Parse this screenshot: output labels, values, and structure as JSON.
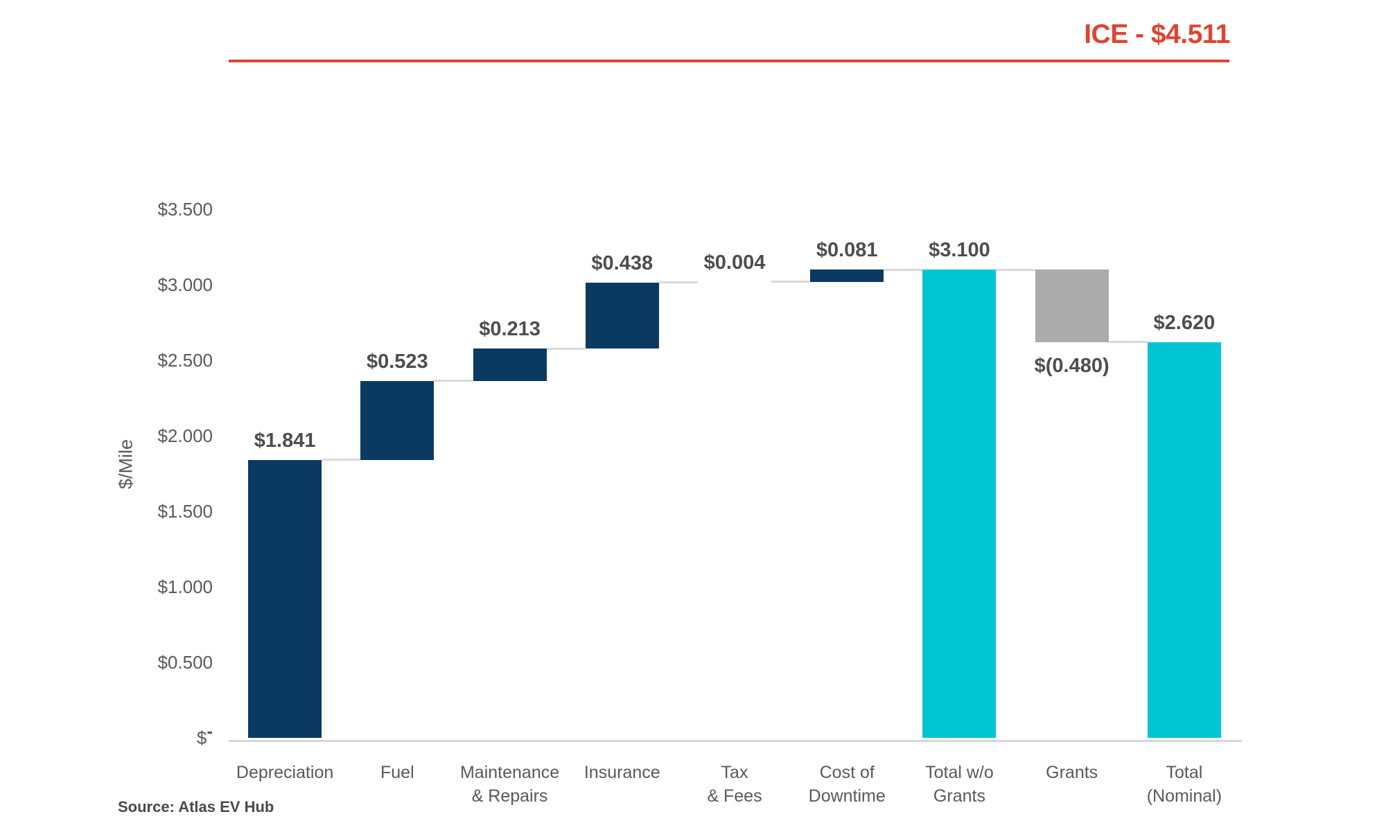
{
  "source_note": "Source: Atlas EV Hub",
  "colors": {
    "accent_red": "#de4430",
    "bar_navy": "#0a3a62",
    "bar_cyan": "#00c6d3",
    "bar_gray": "#ababab",
    "connector_gray": "#d9d9d9",
    "axis_line_gray": "#d6d6d6",
    "axis_text": "#595959",
    "data_label_text": "#4d4d4d"
  },
  "chart_data": {
    "type": "bar",
    "subtype": "waterfall",
    "title": "ICE - $4.511",
    "ylabel": "$/Mile",
    "xlabel": "",
    "ylim": [
      0,
      3.5
    ],
    "grid": false,
    "legend": false,
    "yticks": [
      {
        "label": "$3.500",
        "value": 3.5
      },
      {
        "label": "$3.000",
        "value": 3.0
      },
      {
        "label": "$2.500",
        "value": 2.5
      },
      {
        "label": "$2.000",
        "value": 2.0
      },
      {
        "label": "$1.500",
        "value": 1.5
      },
      {
        "label": "$1.000",
        "value": 1.0
      },
      {
        "label": "$0.500",
        "value": 0.5
      },
      {
        "label": "$-",
        "value": 0.0
      }
    ],
    "bars": [
      {
        "category_lines": [
          "Depreciation"
        ],
        "value": 1.841,
        "label": "$1.841",
        "start": 0,
        "end": 1.841,
        "color": "navy",
        "label_pos": "above"
      },
      {
        "category_lines": [
          "Fuel"
        ],
        "value": 0.523,
        "label": "$0.523",
        "start": 1.841,
        "end": 2.364,
        "color": "navy",
        "label_pos": "above"
      },
      {
        "category_lines": [
          "Maintenance",
          "& Repairs"
        ],
        "value": 0.213,
        "label": "$0.213",
        "start": 2.364,
        "end": 2.577,
        "color": "navy",
        "label_pos": "above"
      },
      {
        "category_lines": [
          "Insurance"
        ],
        "value": 0.438,
        "label": "$0.438",
        "start": 2.577,
        "end": 3.015,
        "color": "navy",
        "label_pos": "above"
      },
      {
        "category_lines": [
          "Tax",
          "& Fees"
        ],
        "value": 0.004,
        "label": "$0.004",
        "start": 3.015,
        "end": 3.019,
        "color": "navy",
        "label_pos": "above"
      },
      {
        "category_lines": [
          "Cost of",
          "Downtime"
        ],
        "value": 0.081,
        "label": "$0.081",
        "start": 3.019,
        "end": 3.1,
        "color": "navy",
        "label_pos": "above"
      },
      {
        "category_lines": [
          "Total w/o",
          "Grants"
        ],
        "value": 3.1,
        "label": "$3.100",
        "start": 0,
        "end": 3.1,
        "color": "cyan",
        "label_pos": "above"
      },
      {
        "category_lines": [
          "Grants"
        ],
        "value": -0.48,
        "label": "$(0.480)",
        "start": 3.1,
        "end": 2.62,
        "color": "gray",
        "label_pos": "below"
      },
      {
        "category_lines": [
          "Total",
          "(Nominal)"
        ],
        "value": 2.62,
        "label": "$2.620",
        "start": 0,
        "end": 2.62,
        "color": "cyan",
        "label_pos": "above"
      }
    ]
  }
}
